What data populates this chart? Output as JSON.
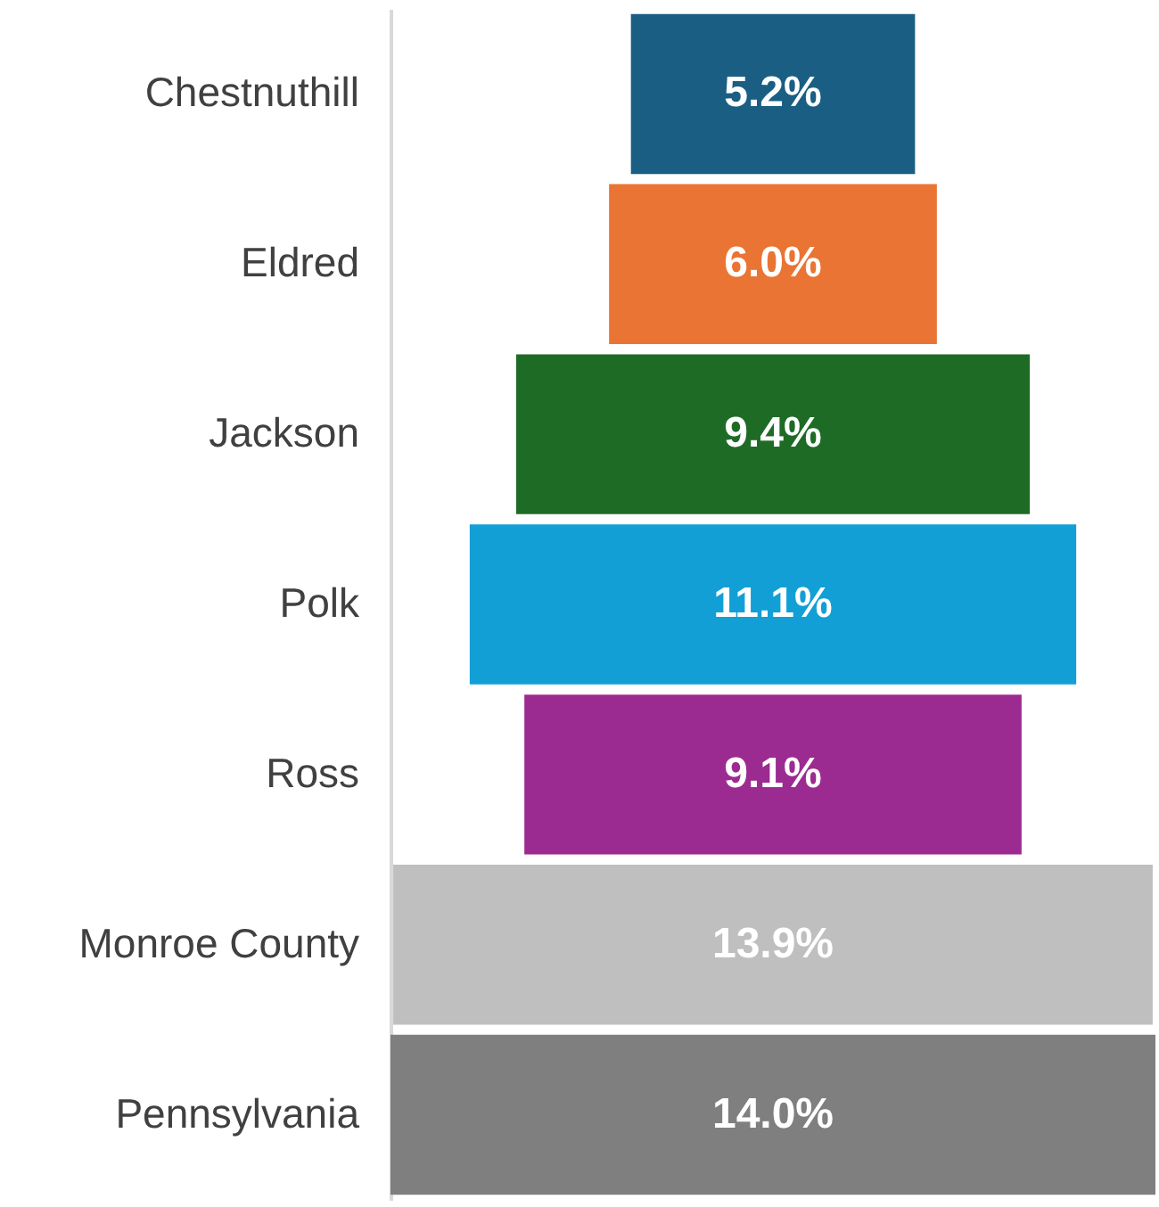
{
  "chart_data": {
    "type": "other",
    "categories": [
      "Chestnuthill",
      "Eldred",
      "Jackson",
      "Polk",
      "Ross",
      "Monroe County",
      "Pennsylvania"
    ],
    "values": [
      5.2,
      6.0,
      9.4,
      11.1,
      9.1,
      13.9,
      14.0
    ],
    "colors": [
      "#1a5e83",
      "#ea7433",
      "#1e6b26",
      "#129fd6",
      "#9c2b91",
      "#bfbfbf",
      "#7f7f7f"
    ],
    "value_labels": [
      "5.2%",
      "6.0%",
      "9.4%",
      "11.1%",
      "9.1%",
      "13.9%",
      "14.0%"
    ]
  }
}
